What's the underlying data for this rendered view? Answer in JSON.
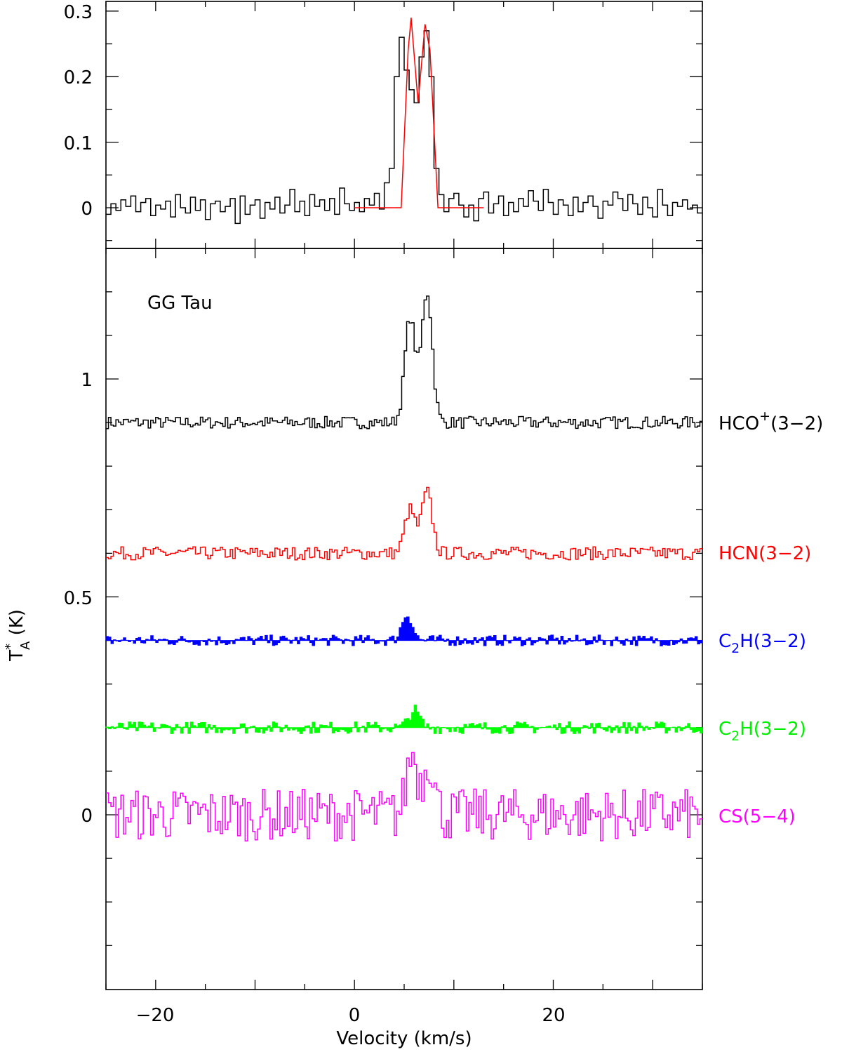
{
  "chart_data": [
    {
      "type": "line",
      "step": "histogram",
      "panel": "top",
      "xlim": [
        -25,
        35
      ],
      "ylim": [
        -0.06,
        0.31
      ],
      "yticks": [
        "0",
        "0.1",
        "0.2",
        "0.3"
      ],
      "series": [
        {
          "color": "#000000",
          "x": [
            -25,
            -24.5,
            -24,
            -23.5,
            -23,
            -22.5,
            -22,
            -21.5,
            -21,
            -20.5,
            -20,
            -19.5,
            -19,
            -18.5,
            -18,
            -17.5,
            -17,
            -16.5,
            -16,
            -15.5,
            -15,
            -14.5,
            -14,
            -13.5,
            -13,
            -12.5,
            -12,
            -11.5,
            -11,
            -10.5,
            -10,
            -9.5,
            -9,
            -8.5,
            -8,
            -7.5,
            -7,
            -6.5,
            -6,
            -5.5,
            -5,
            -4.5,
            -4,
            -3.5,
            -3,
            -2.5,
            -2,
            -1.5,
            -1,
            -0.5,
            0,
            0.5,
            1,
            1.5,
            2,
            2.5,
            3,
            3.5,
            4,
            4.5,
            5,
            5.5,
            6,
            6.5,
            7,
            7.5,
            8,
            8.5,
            9,
            9.5,
            10,
            10.5,
            11,
            11.5,
            12,
            12.5,
            13,
            13.5,
            14,
            14.5,
            15,
            15.5,
            16,
            16.5,
            17,
            17.5,
            18,
            18.5,
            19,
            19.5,
            20,
            20.5,
            21,
            21.5,
            22,
            22.5,
            23,
            23.5,
            24,
            24.5,
            25,
            25.5,
            26,
            26.5,
            27,
            27.5,
            28,
            28.5,
            29,
            29.5,
            30,
            30.5,
            31,
            31.5,
            32,
            32.5,
            33,
            33.5,
            34,
            34.5
          ],
          "y": [
            -0.01,
            0.006,
            -0.004,
            0.012,
            0.002,
            0.018,
            -0.006,
            0.008,
            0.014,
            -0.012,
            0.004,
            -0.002,
            0.01,
            -0.014,
            0.02,
            0.0,
            -0.008,
            0.016,
            -0.004,
            0.012,
            -0.018,
            0.006,
            0.01,
            -0.006,
            0.002,
            0.014,
            -0.024,
            0.018,
            -0.01,
            0.004,
            0.012,
            -0.016,
            0.008,
            -0.002,
            0.016,
            -0.008,
            0.004,
            0.028,
            -0.006,
            0.01,
            -0.012,
            0.02,
            0.002,
            0.012,
            -0.004,
            0.014,
            -0.01,
            0.03,
            0.006,
            -0.004,
            0.008,
            -0.006,
            0.014,
            0.004,
            0.022,
            -0.002,
            0.038,
            0.06,
            0.2,
            0.26,
            0.21,
            0.18,
            0.16,
            0.23,
            0.27,
            0.2,
            0.06,
            0.02,
            -0.006,
            0.014,
            0.022,
            0.004,
            -0.014,
            0.004,
            -0.02,
            0.014,
            0.024,
            -0.008,
            0.006,
            0.018,
            -0.012,
            0.008,
            -0.006,
            0.014,
            0.002,
            0.026,
            0.01,
            -0.004,
            0.028,
            0.008,
            -0.01,
            0.012,
            0.004,
            -0.012,
            0.016,
            -0.006,
            0.008,
            0.018,
            0.002,
            -0.016,
            0.01,
            0.004,
            0.024,
            0.014,
            -0.004,
            0.02,
            0.006,
            -0.01,
            0.016,
            0.0,
            -0.014,
            0.028,
            0.004,
            -0.012,
            0.008,
            0.002,
            0.012,
            -0.002,
            0.004,
            -0.008
          ]
        },
        {
          "color": "#ff0000",
          "x": [
            0,
            4.7,
            5.4,
            5.7,
            6.4,
            7.1,
            7.6,
            8.4,
            13
          ],
          "y": [
            0.0,
            0.0,
            0.24,
            0.29,
            0.16,
            0.28,
            0.24,
            0.0,
            0.0
          ]
        }
      ]
    },
    {
      "type": "line",
      "step": "histogram",
      "panel": "bottom",
      "title": "GG Tau",
      "xlabel": "Velocity (km/s)",
      "ylabel": "T_A^* (K)",
      "xlim": [
        -25,
        35
      ],
      "ylim": [
        -0.4,
        1.26
      ],
      "xticks": [
        "−20",
        "0",
        "20"
      ],
      "yticks": [
        "0",
        "0.5",
        "1"
      ],
      "series": [
        {
          "name": "HCO+(3-2)",
          "color": "#000000",
          "baseline": 0.9,
          "peaks": [
            {
              "v": 5.6,
              "t": 1.14
            },
            {
              "v": 7.3,
              "t": 1.2
            }
          ]
        },
        {
          "name": "HCN(3-2)",
          "color": "#ff0000",
          "baseline": 0.6,
          "peaks": [
            {
              "v": 5.6,
              "t": 0.7
            },
            {
              "v": 7.3,
              "t": 0.74
            }
          ]
        },
        {
          "name": "C2H(3-2)",
          "color": "#0000ff",
          "filled": true,
          "baseline": 0.4,
          "peaks": [
            {
              "v": 5.3,
              "t": 0.46
            }
          ]
        },
        {
          "name": "C2H(3-2)",
          "color": "#00ff00",
          "filled": true,
          "baseline": 0.2,
          "peaks": [
            {
              "v": 6.0,
              "t": 0.24
            }
          ]
        },
        {
          "name": "CS(5-4)",
          "color": "#ff00ff",
          "baseline": 0.0,
          "peaks": [
            {
              "v": 5.8,
              "t": 0.14
            },
            {
              "v": 7.5,
              "t": 0.13
            }
          ]
        }
      ]
    }
  ],
  "labels": {
    "source": "GG Tau",
    "xlabel": "Velocity (km/s)",
    "ylabel_main": "T",
    "ylabel_sup": "*",
    "ylabel_sub": "A",
    "ylabel_unit": " (K)",
    "hco_main": "HCO",
    "hco_sup": "+",
    "hco_rest": "(3−2)",
    "hcn": "HCN(3−2)",
    "c2h_a_pre": "C",
    "c2h_a_sub": "2",
    "c2h_a_post": "H(3−2)",
    "c2h_b_pre": "C",
    "c2h_b_sub": "2",
    "c2h_b_post": "H(3−2)",
    "cs": "CS(5−4)"
  },
  "colors": {
    "hco": "#000000",
    "hcn": "#ff0000",
    "c2h_blue": "#0000ff",
    "c2h_green": "#00ff00",
    "cs": "#ff00ff",
    "fit": "#ff0000"
  }
}
